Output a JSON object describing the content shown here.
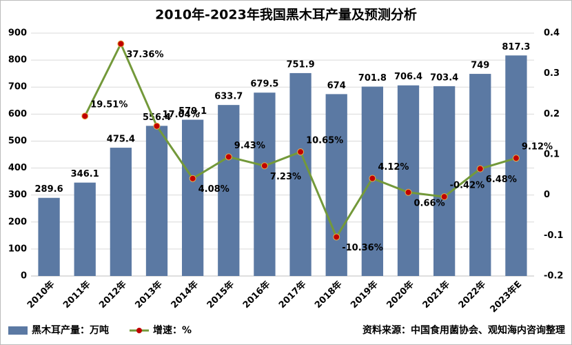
{
  "chart_data": {
    "type": "bar",
    "title": "2010年-2023年我国黑木耳产量及预测分析",
    "source": "资料来源：中国食用菌协会、观知海内咨询整理",
    "categories": [
      "2010年",
      "2011年",
      "2012年",
      "2013年",
      "2014年",
      "2015年",
      "2016年",
      "2017年",
      "2018年",
      "2019年",
      "2020年",
      "2021年",
      "2022年",
      "2023年E"
    ],
    "series": [
      {
        "name": "黑木耳产量：万吨",
        "type": "bar",
        "color": "#5b79a3",
        "values": [
          289.6,
          346.1,
          475.4,
          556.4,
          579.1,
          633.7,
          679.5,
          751.9,
          674,
          701.8,
          706.4,
          703.4,
          749,
          817.3
        ]
      },
      {
        "name": "增速：%",
        "type": "line",
        "axis": "y2",
        "color": "#73993a",
        "marker_color": "#c00000",
        "values": [
          null,
          0.1951,
          0.3736,
          0.1704,
          0.0408,
          0.0943,
          0.0723,
          0.1065,
          -0.1036,
          0.0412,
          0.0066,
          -0.0042,
          0.0648,
          0.0912
        ],
        "value_labels": [
          null,
          "19.51%",
          "37.36%",
          "17.04%",
          "4.08%",
          "9.43%",
          "7.23%",
          "10.65%",
          "-10.36%",
          "4.12%",
          "0.66%",
          "-0.42%",
          "6.48%",
          "9.12%"
        ]
      }
    ],
    "ylim": [
      0,
      900
    ],
    "yticks": [
      0,
      100,
      200,
      300,
      400,
      500,
      600,
      700,
      800,
      900
    ],
    "y2lim": [
      -0.2,
      0.4
    ],
    "y2ticks": [
      -0.2,
      -0.1,
      0,
      0.1,
      0.2,
      0.3,
      0.4
    ],
    "grid": true,
    "legend": "bottom"
  }
}
